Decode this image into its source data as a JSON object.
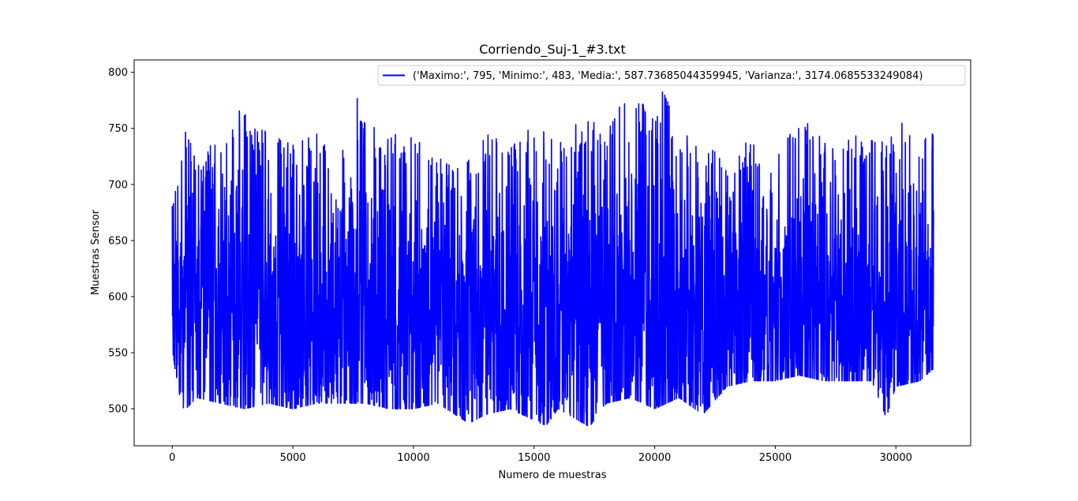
{
  "chart_data": {
    "type": "line",
    "title": "Corriendo_Suj-1_#3.txt",
    "xlabel": "Numero de muestras",
    "ylabel": "Muestras Sensor",
    "xlim": [
      -1580,
      33100
    ],
    "ylim": [
      467,
      811
    ],
    "xticks": [
      0,
      5000,
      10000,
      15000,
      20000,
      25000,
      30000
    ],
    "yticks": [
      500,
      550,
      600,
      650,
      700,
      750,
      800
    ],
    "grid": false,
    "legend_position": "top-right",
    "series": [
      {
        "name": "('Maximo:', 795, 'Minimo:', 483, 'Media:', 587.73685044359945, 'Varianza:', 3174.0685533249084)",
        "color": "#0000ff",
        "n_samples": 31560,
        "stats": {
          "max": 795,
          "min": 483,
          "mean": 587.7368504435995,
          "variance": 3174.0685533249084
        },
        "upper_envelope": [
          [
            0,
            700
          ],
          [
            300,
            705
          ],
          [
            500,
            755
          ],
          [
            1000,
            720
          ],
          [
            2000,
            745
          ],
          [
            2800,
            770
          ],
          [
            4000,
            745
          ],
          [
            5000,
            735
          ],
          [
            6000,
            745
          ],
          [
            7000,
            725
          ],
          [
            7700,
            780
          ],
          [
            8500,
            745
          ],
          [
            10000,
            745
          ],
          [
            11000,
            725
          ],
          [
            12000,
            712
          ],
          [
            13000,
            745
          ],
          [
            14000,
            735
          ],
          [
            15000,
            755
          ],
          [
            16000,
            735
          ],
          [
            17000,
            760
          ],
          [
            18000,
            750
          ],
          [
            18700,
            790
          ],
          [
            20000,
            760
          ],
          [
            20400,
            792
          ],
          [
            21000,
            745
          ],
          [
            22000,
            740
          ],
          [
            23000,
            730
          ],
          [
            24000,
            740
          ],
          [
            25000,
            730
          ],
          [
            26000,
            760
          ],
          [
            27000,
            745
          ],
          [
            28000,
            745
          ],
          [
            29000,
            740
          ],
          [
            30000,
            745
          ],
          [
            30500,
            765
          ],
          [
            31000,
            740
          ],
          [
            31500,
            750
          ]
        ],
        "lower_envelope": [
          [
            0,
            555
          ],
          [
            200,
            520
          ],
          [
            500,
            498
          ],
          [
            1000,
            510
          ],
          [
            2000,
            505
          ],
          [
            3000,
            500
          ],
          [
            4000,
            505
          ],
          [
            5000,
            500
          ],
          [
            6000,
            505
          ],
          [
            7000,
            505
          ],
          [
            8000,
            505
          ],
          [
            9000,
            500
          ],
          [
            10000,
            500
          ],
          [
            11000,
            505
          ],
          [
            12300,
            487
          ],
          [
            13000,
            495
          ],
          [
            14000,
            500
          ],
          [
            15500,
            485
          ],
          [
            16000,
            500
          ],
          [
            17300,
            484
          ],
          [
            18000,
            505
          ],
          [
            19000,
            510
          ],
          [
            20000,
            500
          ],
          [
            21000,
            510
          ],
          [
            22000,
            495
          ],
          [
            23000,
            520
          ],
          [
            24000,
            525
          ],
          [
            25000,
            525
          ],
          [
            26000,
            530
          ],
          [
            27000,
            525
          ],
          [
            28000,
            525
          ],
          [
            29000,
            525
          ],
          [
            29600,
            492
          ],
          [
            30000,
            520
          ],
          [
            31000,
            525
          ],
          [
            31500,
            535
          ]
        ]
      }
    ]
  }
}
